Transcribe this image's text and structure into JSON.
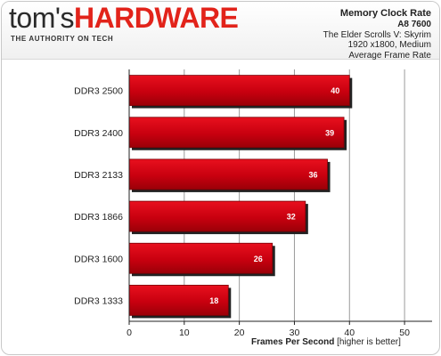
{
  "header": {
    "logo_part1": "tom's",
    "logo_part2": "HARDWARE",
    "tagline": "THE AUTHORITY ON TECH"
  },
  "chart_data": {
    "type": "bar",
    "orientation": "horizontal",
    "title": "Memory Clock Rate",
    "subtitle": "A8 7600",
    "subtitle2": "The Elder Scrolls V: Skyrim",
    "subtitle3": "1920 x1800, Medium",
    "subtitle4": "Average Frame Rate",
    "categories": [
      "DDR3 2500",
      "DDR3 2400",
      "DDR3 2133",
      "DDR3 1866",
      "DDR3 1600",
      "DDR3 1333"
    ],
    "values": [
      40,
      39,
      36,
      32,
      26,
      18
    ],
    "xlabel": "Frames Per Second",
    "xlabel_note": "[higher is better]",
    "xlim": [
      0,
      55
    ],
    "xticks": [
      0,
      10,
      20,
      30,
      40,
      50
    ],
    "grid": true,
    "bar_color": "#c8000f",
    "bar_shadow": "#222222"
  }
}
